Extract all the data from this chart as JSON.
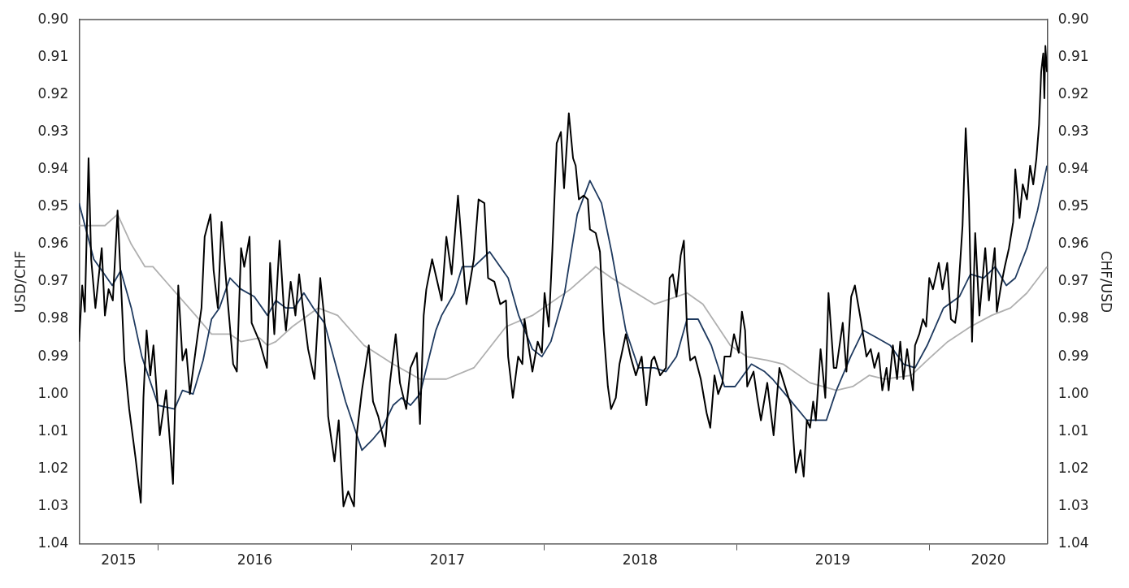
{
  "chart_data": {
    "type": "line",
    "ylabel": "USD/CHF",
    "y2label": "CHF/USD",
    "xlim": [
      "2015-08-04",
      "2020-08-12"
    ],
    "xticks": [
      {
        "value": "2015-10-18",
        "label": "2015"
      },
      {
        "value": "2016-01-01",
        "label": null
      },
      {
        "value": "2016-07-02",
        "label": "2016"
      },
      {
        "value": "2017-01-01",
        "label": null
      },
      {
        "value": "2017-07-02",
        "label": "2017"
      },
      {
        "value": "2018-01-01",
        "label": null
      },
      {
        "value": "2018-07-02",
        "label": "2018"
      },
      {
        "value": "2019-01-01",
        "label": null
      },
      {
        "value": "2019-07-02",
        "label": "2019"
      },
      {
        "value": "2020-01-01",
        "label": null
      },
      {
        "value": "2020-04-22",
        "label": "2020"
      }
    ],
    "ylim": [
      1.04,
      0.9
    ],
    "yticks": [
      {
        "value": 0.9,
        "label": "0.90"
      },
      0.91,
      0.92,
      0.93,
      0.94,
      0.95,
      0.96,
      0.97,
      0.98,
      0.99,
      {
        "value": 1.0,
        "label": "1.00"
      },
      1.01,
      1.02,
      1.03,
      1.04
    ],
    "y2lim": [
      1.04,
      0.9
    ],
    "y2ticks": [
      {
        "value": 0.9,
        "label": "0.90"
      },
      0.91,
      0.92,
      0.93,
      0.94,
      0.95,
      0.96,
      0.97,
      0.98,
      0.99,
      {
        "value": 1.0,
        "label": "1.00"
      },
      1.01,
      1.02,
      1.03,
      1.04
    ],
    "series": [
      {
        "color": "#000000",
        "x": [
          "2015-08-04",
          "2015-08-10",
          "2015-08-15",
          "2015-08-22",
          "2015-08-27",
          "2015-09-04",
          "2015-09-16",
          "2015-09-22",
          "2015-09-29",
          "2015-10-07",
          "2015-10-16",
          "2015-10-22",
          "2015-10-29",
          "2015-11-07",
          "2015-11-19",
          "2015-11-29",
          "2015-12-04",
          "2015-12-10",
          "2015-12-17",
          "2015-12-23",
          "2016-01-04",
          "2016-01-16",
          "2016-01-29",
          "2016-02-08",
          "2016-02-16",
          "2016-02-23",
          "2016-03-01",
          "2016-03-16",
          "2016-03-23",
          "2016-03-29",
          "2016-04-09",
          "2016-04-15",
          "2016-04-23",
          "2016-04-30",
          "2016-05-11",
          "2016-05-22",
          "2016-05-29",
          "2016-06-06",
          "2016-06-12",
          "2016-06-22",
          "2016-06-26",
          "2016-07-11",
          "2016-07-25",
          "2016-07-31",
          "2016-08-08",
          "2016-08-18",
          "2016-08-26",
          "2016-08-30",
          "2016-09-08",
          "2016-09-17",
          "2016-09-24",
          "2016-10-03",
          "2016-10-11",
          "2016-10-23",
          "2016-11-03",
          "2016-11-11",
          "2016-11-18",
          "2016-11-30",
          "2016-12-08",
          "2016-12-17",
          "2016-12-26",
          "2017-01-06",
          "2017-01-11",
          "2017-01-21",
          "2017-02-03",
          "2017-02-11",
          "2017-02-21",
          "2017-03-06",
          "2017-03-15",
          "2017-03-26",
          "2017-04-03",
          "2017-04-15",
          "2017-04-23",
          "2017-05-05",
          "2017-05-11",
          "2017-05-18",
          "2017-05-23",
          "2017-06-03",
          "2017-06-21",
          "2017-06-30",
          "2017-07-10",
          "2017-07-22",
          "2017-08-07",
          "2017-08-21",
          "2017-08-30",
          "2017-09-10",
          "2017-09-17",
          "2017-09-29",
          "2017-10-10",
          "2017-10-21",
          "2017-10-25",
          "2017-11-03",
          "2017-11-13",
          "2017-11-21",
          "2017-11-25",
          "2017-12-10",
          "2017-12-20",
          "2017-12-28",
          "2018-01-02",
          "2018-01-10",
          "2018-01-17",
          "2018-01-25",
          "2018-02-02",
          "2018-02-08",
          "2018-02-17",
          "2018-02-25",
          "2018-03-02",
          "2018-03-08",
          "2018-03-17",
          "2018-03-25",
          "2018-03-29",
          "2018-04-09",
          "2018-04-17",
          "2018-04-24",
          "2018-05-02",
          "2018-05-08",
          "2018-05-17",
          "2018-05-24",
          "2018-06-05",
          "2018-06-14",
          "2018-06-24",
          "2018-07-05",
          "2018-07-14",
          "2018-07-24",
          "2018-07-29",
          "2018-08-09",
          "2018-08-20",
          "2018-08-27",
          "2018-09-02",
          "2018-09-09",
          "2018-09-17",
          "2018-09-23",
          "2018-09-29",
          "2018-10-05",
          "2018-10-14",
          "2018-10-25",
          "2018-11-05",
          "2018-11-12",
          "2018-11-20",
          "2018-11-27",
          "2018-12-05",
          "2018-12-09",
          "2018-12-20",
          "2018-12-27",
          "2019-01-05",
          "2019-01-11",
          "2019-01-17",
          "2019-01-21",
          "2019-02-02",
          "2019-02-09",
          "2019-02-16",
          "2019-02-28",
          "2019-03-12",
          "2019-03-23",
          "2019-04-05",
          "2019-04-14",
          "2019-04-23",
          "2019-05-02",
          "2019-05-08",
          "2019-05-14",
          "2019-05-20",
          "2019-05-26",
          "2019-05-31",
          "2019-06-09",
          "2019-06-18",
          "2019-06-24",
          "2019-07-04",
          "2019-07-09",
          "2019-07-21",
          "2019-07-28",
          "2019-08-06",
          "2019-08-13",
          "2019-08-24",
          "2019-09-04",
          "2019-09-12",
          "2019-09-19",
          "2019-09-27",
          "2019-10-04",
          "2019-10-12",
          "2019-10-16",
          "2019-10-24",
          "2019-11-01",
          "2019-11-07",
          "2019-11-13",
          "2019-11-20",
          "2019-12-01",
          "2019-12-05",
          "2019-12-13",
          "2019-12-20",
          "2019-12-26",
          "2020-01-01",
          "2020-01-08",
          "2020-01-19",
          "2020-01-26",
          "2020-02-04",
          "2020-02-11",
          "2020-02-19",
          "2020-02-23",
          "2020-03-04",
          "2020-03-10",
          "2020-03-16",
          "2020-03-22",
          "2020-03-28",
          "2020-04-05",
          "2020-04-16",
          "2020-04-23",
          "2020-05-04",
          "2020-05-08",
          "2020-05-16",
          "2020-05-23",
          "2020-05-31",
          "2020-06-08",
          "2020-06-12",
          "2020-06-20",
          "2020-06-26",
          "2020-07-04",
          "2020-07-10",
          "2020-07-16",
          "2020-07-22",
          "2020-07-27",
          "2020-07-31",
          "2020-08-04",
          "2020-08-06",
          "2020-08-08",
          "2020-08-11"
        ],
        "values": [
          0.986,
          0.971,
          0.978,
          0.937,
          0.964,
          0.977,
          0.961,
          0.979,
          0.972,
          0.975,
          0.951,
          0.969,
          0.991,
          1.004,
          1.017,
          1.029,
          1.001,
          0.983,
          0.995,
          0.987,
          1.011,
          0.999,
          1.024,
          0.971,
          0.991,
          0.988,
          1.0,
          0.984,
          0.977,
          0.958,
          0.952,
          0.967,
          0.977,
          0.954,
          0.974,
          0.992,
          0.994,
          0.961,
          0.966,
          0.958,
          0.981,
          0.986,
          0.993,
          0.965,
          0.984,
          0.959,
          0.977,
          0.983,
          0.97,
          0.979,
          0.968,
          0.979,
          0.988,
          0.996,
          0.969,
          0.98,
          1.006,
          1.018,
          1.007,
          1.03,
          1.026,
          1.03,
          1.011,
          0.999,
          0.987,
          1.002,
          1.006,
          1.014,
          0.997,
          0.984,
          0.997,
          1.004,
          0.993,
          0.989,
          1.008,
          0.979,
          0.972,
          0.964,
          0.975,
          0.958,
          0.968,
          0.947,
          0.976,
          0.964,
          0.948,
          0.949,
          0.969,
          0.97,
          0.976,
          0.975,
          0.99,
          1.001,
          0.99,
          0.992,
          0.98,
          0.994,
          0.986,
          0.989,
          0.973,
          0.982,
          0.961,
          0.933,
          0.93,
          0.945,
          0.925,
          0.937,
          0.939,
          0.948,
          0.947,
          0.948,
          0.956,
          0.957,
          0.962,
          0.983,
          0.998,
          1.004,
          1.001,
          0.992,
          0.984,
          0.99,
          0.995,
          0.99,
          1.003,
          0.991,
          0.99,
          0.995,
          0.993,
          0.969,
          0.968,
          0.974,
          0.963,
          0.959,
          0.983,
          0.991,
          0.99,
          0.996,
          1.005,
          1.009,
          0.995,
          1.0,
          0.997,
          0.99,
          0.99,
          0.984,
          0.989,
          0.978,
          0.983,
          0.998,
          0.994,
          1.001,
          1.007,
          0.997,
          1.011,
          0.993,
          0.999,
          1.003,
          1.021,
          1.015,
          1.022,
          1.007,
          1.009,
          1.002,
          1.007,
          0.988,
          1.001,
          0.973,
          0.993,
          0.993,
          0.981,
          0.994,
          0.974,
          0.971,
          0.98,
          0.99,
          0.988,
          0.993,
          0.989,
          0.999,
          0.993,
          0.999,
          0.987,
          0.996,
          0.986,
          0.996,
          0.988,
          0.999,
          0.987,
          0.984,
          0.98,
          0.982,
          0.969,
          0.972,
          0.965,
          0.972,
          0.965,
          0.98,
          0.981,
          0.977,
          0.955,
          0.929,
          0.948,
          0.986,
          0.957,
          0.979,
          0.961,
          0.975,
          0.961,
          0.978,
          0.971,
          0.966,
          0.961,
          0.954,
          0.94,
          0.953,
          0.944,
          0.948,
          0.939,
          0.944,
          0.937,
          0.928,
          0.914,
          0.909,
          0.921,
          0.907,
          0.914
        ]
      },
      {
        "color": "#1f3a5f",
        "x": [
          "2015-08-04",
          "2015-09-01",
          "2015-10-06",
          "2015-10-22",
          "2015-11-11",
          "2015-12-01",
          "2016-01-01",
          "2016-02-01",
          "2016-02-16",
          "2016-03-07",
          "2016-03-26",
          "2016-04-11",
          "2016-04-26",
          "2016-05-16",
          "2016-06-06",
          "2016-07-01",
          "2016-07-26",
          "2016-08-11",
          "2016-08-30",
          "2016-09-15",
          "2016-10-03",
          "2016-10-21",
          "2016-11-11",
          "2016-11-30",
          "2016-12-21",
          "2017-01-21",
          "2017-02-11",
          "2017-03-01",
          "2017-03-21",
          "2017-04-06",
          "2017-04-23",
          "2017-05-11",
          "2017-06-10",
          "2017-06-21",
          "2017-07-15",
          "2017-07-30",
          "2017-08-21",
          "2017-09-20",
          "2017-10-10",
          "2017-10-25",
          "2017-11-14",
          "2017-12-10",
          "2017-12-28",
          "2018-01-14",
          "2018-02-09",
          "2018-03-05",
          "2018-03-29",
          "2018-04-20",
          "2018-05-09",
          "2018-06-05",
          "2018-06-29",
          "2018-07-29",
          "2018-08-20",
          "2018-09-09",
          "2018-09-29",
          "2018-10-20",
          "2018-11-14",
          "2018-12-09",
          "2018-12-29",
          "2019-01-29",
          "2019-02-23",
          "2019-03-10",
          "2019-04-09",
          "2019-05-14",
          "2019-06-20",
          "2019-07-09",
          "2019-08-05",
          "2019-08-29",
          "2019-09-24",
          "2019-10-19",
          "2019-11-13",
          "2019-12-05",
          "2019-12-28",
          "2020-01-28",
          "2020-02-27",
          "2020-03-19",
          "2020-04-13",
          "2020-05-05",
          "2020-05-26",
          "2020-06-12",
          "2020-07-04",
          "2020-07-24",
          "2020-08-11"
        ],
        "values": [
          0.949,
          0.964,
          0.971,
          0.967,
          0.977,
          0.99,
          1.003,
          1.004,
          0.999,
          1.0,
          0.991,
          0.98,
          0.977,
          0.969,
          0.972,
          0.974,
          0.979,
          0.975,
          0.977,
          0.977,
          0.973,
          0.977,
          0.981,
          0.991,
          1.002,
          1.015,
          1.012,
          1.009,
          1.003,
          1.001,
          1.003,
          1.0,
          0.983,
          0.979,
          0.973,
          0.966,
          0.966,
          0.962,
          0.966,
          0.969,
          0.979,
          0.988,
          0.99,
          0.986,
          0.973,
          0.952,
          0.943,
          0.949,
          0.962,
          0.983,
          0.993,
          0.993,
          0.994,
          0.99,
          0.98,
          0.98,
          0.987,
          0.998,
          0.998,
          0.992,
          0.994,
          0.996,
          1.001,
          1.007,
          1.007,
          0.999,
          0.99,
          0.983,
          0.985,
          0.987,
          0.992,
          0.993,
          0.987,
          0.977,
          0.974,
          0.968,
          0.969,
          0.966,
          0.971,
          0.969,
          0.961,
          0.951,
          0.939
        ]
      },
      {
        "color": "#b0b0b0",
        "x": [
          "2015-08-04",
          "2015-09-22",
          "2015-10-16",
          "2015-11-11",
          "2015-12-07",
          "2015-12-22",
          "2016-01-22",
          "2016-03-12",
          "2016-04-11",
          "2016-05-16",
          "2016-06-06",
          "2016-07-11",
          "2016-07-26",
          "2016-08-11",
          "2016-09-11",
          "2016-10-30",
          "2016-12-06",
          "2017-01-25",
          "2017-03-21",
          "2017-05-11",
          "2017-06-30",
          "2017-08-21",
          "2017-10-21",
          "2017-12-10",
          "2018-02-20",
          "2018-04-09",
          "2018-05-09",
          "2018-07-29",
          "2018-09-09",
          "2018-09-29",
          "2018-10-29",
          "2018-12-20",
          "2019-01-20",
          "2019-02-28",
          "2019-03-30",
          "2019-05-20",
          "2019-07-09",
          "2019-08-09",
          "2019-09-09",
          "2019-10-09",
          "2019-11-28",
          "2019-12-28",
          "2020-02-05",
          "2020-03-19",
          "2020-04-28",
          "2020-06-03",
          "2020-07-04",
          "2020-08-11"
        ],
        "values": [
          0.955,
          0.955,
          0.952,
          0.96,
          0.966,
          0.966,
          0.971,
          0.979,
          0.984,
          0.984,
          0.986,
          0.985,
          0.987,
          0.986,
          0.982,
          0.977,
          0.979,
          0.987,
          0.992,
          0.996,
          0.996,
          0.993,
          0.982,
          0.979,
          0.972,
          0.966,
          0.969,
          0.976,
          0.974,
          0.973,
          0.976,
          0.987,
          0.99,
          0.991,
          0.992,
          0.997,
          0.999,
          0.998,
          0.995,
          0.996,
          0.995,
          0.991,
          0.986,
          0.982,
          0.979,
          0.977,
          0.973,
          0.966
        ]
      }
    ]
  }
}
